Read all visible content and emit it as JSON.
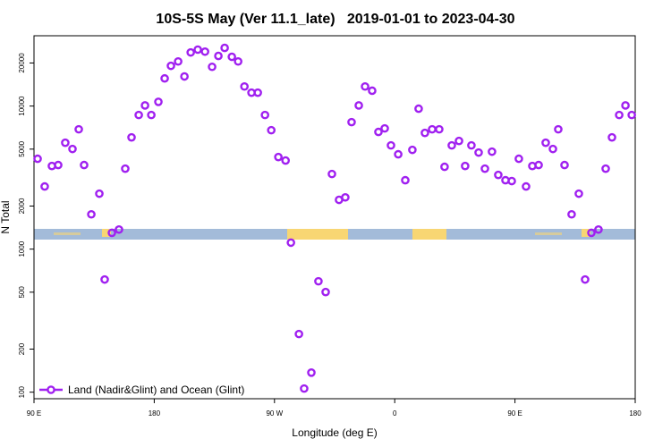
{
  "chart_data": {
    "type": "scatter",
    "title": "10S-5S May (Ver 11.1_late)   2019-01-01 to 2023-04-30",
    "x_label": "Longitude (deg E)",
    "y_label": "N Total",
    "log_y": true,
    "legend": "bottom-left",
    "xlim": [
      90,
      540
    ],
    "xticks": [
      {
        "value": 90,
        "label": "90 E"
      },
      {
        "value": 180,
        "label": "180"
      },
      {
        "value": 270,
        "label": "90 W"
      },
      {
        "value": 360,
        "label": "0"
      },
      {
        "value": 450,
        "label": "90 E"
      },
      {
        "value": 540,
        "label": "180"
      }
    ],
    "ylim": [
      90,
      31000
    ],
    "yticks": [
      100,
      200,
      500,
      1000,
      2000,
      5000,
      10000,
      20000
    ],
    "x": [
      92.7,
      98.0,
      103.4,
      108.1,
      113.4,
      118.8,
      123.5,
      127.5,
      132.9,
      138.9,
      142.9,
      148.3,
      153.6,
      158.3,
      163.0,
      168.4,
      173.1,
      177.8,
      183.1,
      187.8,
      192.5,
      197.9,
      202.6,
      207.3,
      212.6,
      218.0,
      223.3,
      228.0,
      232.7,
      238.1,
      242.8,
      247.5,
      252.8,
      257.5,
      262.9,
      267.6,
      272.9,
      278.3,
      282.3,
      288.3,
      292.2,
      297.6,
      302.9,
      308.3,
      313.0,
      318.3,
      323.0,
      327.7,
      333.1,
      337.8,
      343.1,
      347.8,
      352.5,
      357.2,
      362.6,
      367.9,
      373.2,
      377.9,
      382.6,
      388.0,
      393.3,
      397.3,
      402.7,
      408.1,
      412.7,
      417.4,
      422.8,
      427.5,
      432.8,
      437.5,
      442.9,
      447.6,
      452.9,
      458.3,
      463.0,
      467.7,
      473.0,
      478.4,
      482.4,
      487.1,
      492.4,
      497.8,
      502.5,
      507.2,
      512.5,
      517.9,
      522.6,
      528.0,
      532.7,
      537.4
    ],
    "series": [
      {
        "name": "Land (Nadir&Glint) and Ocean (Glint)",
        "color": "#a020f0",
        "values": [
          4280,
          2740,
          3810,
          3870,
          5540,
          5010,
          6880,
          3870,
          1750,
          2440,
          613,
          1300,
          1370,
          3650,
          6040,
          8660,
          10100,
          8660,
          10700,
          15600,
          19100,
          20500,
          16100,
          23700,
          24800,
          24000,
          18800,
          22400,
          25500,
          22100,
          20500,
          13700,
          12400,
          12400,
          8660,
          6780,
          4400,
          4160,
          1110,
          255,
          106,
          137,
          596,
          501,
          3350,
          2210,
          2300,
          7720,
          10100,
          13700,
          12800,
          6590,
          6980,
          5310,
          4600,
          3030,
          4940,
          9580,
          6490,
          6880,
          6880,
          3760,
          5310,
          5700,
          3810,
          5310,
          4730,
          3650,
          4800,
          3300,
          3030,
          2990,
          4280,
          2740,
          3810,
          3870,
          5540,
          5010,
          6880,
          3870,
          1750,
          2440,
          613,
          1300,
          1370,
          3650,
          6040,
          8660,
          10100,
          8660
        ]
      }
    ]
  }
}
